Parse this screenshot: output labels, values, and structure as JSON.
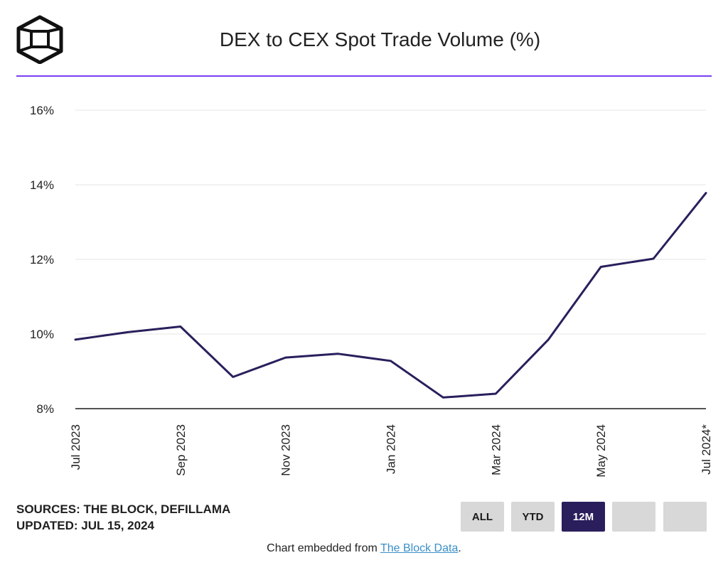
{
  "header": {
    "title": "DEX to CEX Spot Trade Volume (%)",
    "logo_icon": "the-block-cube-icon"
  },
  "footer": {
    "sources": "SOURCES: THE BLOCK, DEFILLAMA",
    "updated": "UPDATED: JUL 15, 2024",
    "embed_prefix": "Chart embedded from ",
    "embed_link": "The Block Data",
    "embed_suffix": "."
  },
  "range_buttons": [
    {
      "label": "ALL",
      "active": false
    },
    {
      "label": "YTD",
      "active": false
    },
    {
      "label": "12M",
      "active": true
    },
    {
      "label": "",
      "active": false
    },
    {
      "label": "",
      "active": false
    }
  ],
  "colors": {
    "line": "#2a1f5c",
    "accent": "#7a3ff2",
    "active_button": "#2a1f5c"
  },
  "chart_data": {
    "type": "line",
    "title": "DEX to CEX Spot Trade Volume (%)",
    "x": [
      "Jul 2023",
      "Aug 2023",
      "Sep 2023",
      "Oct 2023",
      "Nov 2023",
      "Dec 2023",
      "Jan 2024",
      "Feb 2024",
      "Mar 2024",
      "Apr 2024",
      "May 2024",
      "Jun 2024",
      "Jul 2024*"
    ],
    "series": [
      {
        "values": [
          9.85,
          10.05,
          10.2,
          8.85,
          9.37,
          9.47,
          9.28,
          8.3,
          8.4,
          9.85,
          11.8,
          12.02,
          13.78
        ]
      }
    ],
    "x_tick_labels": [
      "Jul 2023",
      "Sep 2023",
      "Nov 2023",
      "Jan 2024",
      "Mar 2024",
      "May 2024",
      "Jul 2024*"
    ],
    "y_ticks": [
      8,
      10,
      12,
      14,
      16
    ],
    "y_tick_labels": [
      "8%",
      "10%",
      "12%",
      "14%",
      "16%"
    ],
    "ylim": [
      8,
      16
    ],
    "grid": true,
    "legend": "none"
  }
}
